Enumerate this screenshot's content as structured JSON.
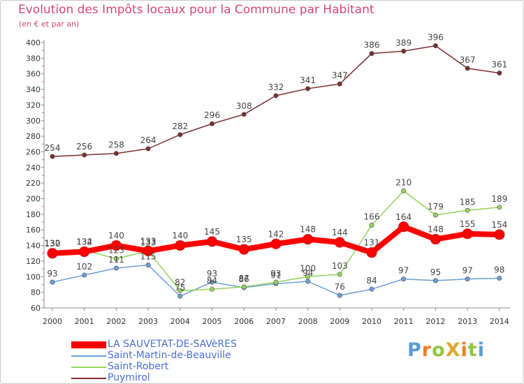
{
  "chart_data": {
    "type": "line",
    "title": "Evolution des Impôts locaux pour la Commune par Habitant",
    "subtitle": "(en € et par an)",
    "x": [
      "2000",
      "2001",
      "2002",
      "2003",
      "2004",
      "2005",
      "2006",
      "2007",
      "2008",
      "2009",
      "2010",
      "2011",
      "2012",
      "2013",
      "2014"
    ],
    "ylim": [
      60,
      400
    ],
    "yticks": [
      60,
      80,
      100,
      120,
      140,
      160,
      180,
      200,
      220,
      240,
      260,
      280,
      300,
      320,
      340,
      360,
      380,
      400
    ],
    "grid": false,
    "legend_position": "bottom-left",
    "series": [
      {
        "name": "LA SAUVETAT-DE-SAVèRES",
        "color": "#ff0000",
        "values": [
          130,
          132,
          140,
          133,
          140,
          145,
          135,
          142,
          148,
          144,
          131,
          164,
          148,
          155,
          154
        ]
      },
      {
        "name": "Saint-Martin-de-Beauville",
        "color": "#6a9fd4",
        "values": [
          93,
          102,
          111,
          115,
          75,
          93,
          86,
          91,
          94,
          76,
          84,
          97,
          95,
          97,
          98
        ]
      },
      {
        "name": "Saint-Robert",
        "color": "#93d45a",
        "values": [
          132,
          134,
          123,
          133,
          82,
          84,
          87,
          93,
          100,
          103,
          166,
          210,
          179,
          185,
          189
        ]
      },
      {
        "name": "Puymirol",
        "color": "#7a2e2e",
        "values": [
          254,
          256,
          258,
          264,
          282,
          296,
          308,
          332,
          341,
          347,
          386,
          389,
          396,
          367,
          361
        ]
      }
    ]
  },
  "logo_text": "ProXiti",
  "logo_colors": [
    "#5a9bd6",
    "#ec7f23",
    "#93c540",
    "#e4a72c",
    "#ec7f23",
    "#93c540",
    "#5a9bd6"
  ],
  "axis_color": "#888888"
}
